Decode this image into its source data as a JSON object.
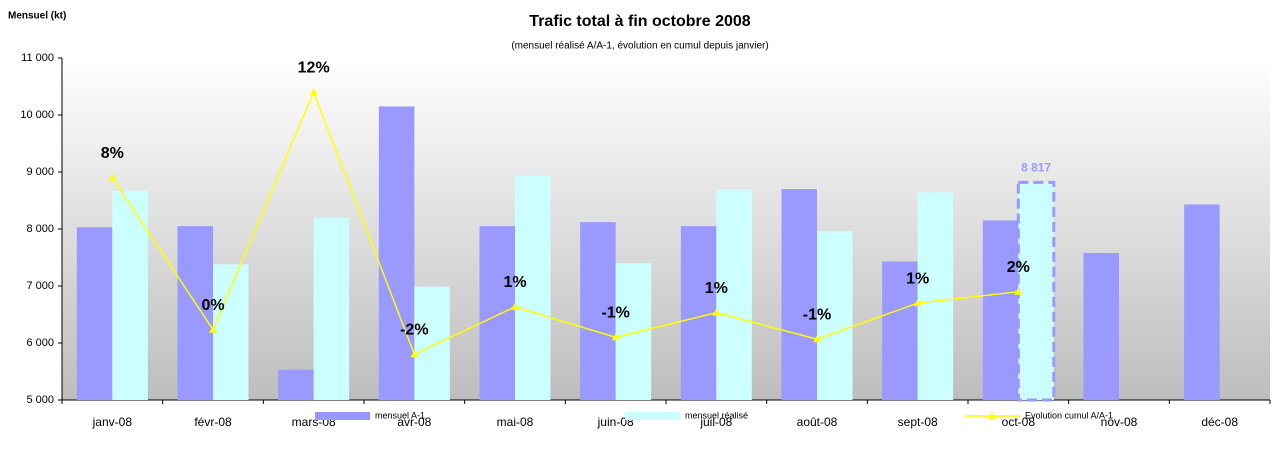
{
  "chart_data": {
    "type": "bar",
    "title": "Trafic total à fin octobre 2008",
    "subtitle": "(mensuel réalisé A/A-1, évolution en cumul depuis janvier)",
    "y_label": "Mensuel (kt)",
    "categories": [
      "janv-08",
      "févr-08",
      "mars-08",
      "avr-08",
      "mai-08",
      "juin-08",
      "juil-08",
      "août-08",
      "sept-08",
      "oct-08",
      "nov-08",
      "déc-08"
    ],
    "series": [
      {
        "name": "mensuel A-1",
        "type": "bar",
        "color": "#9999ff",
        "values": [
          8030,
          8050,
          5530,
          10150,
          8050,
          8120,
          8050,
          8700,
          7430,
          8150,
          7580,
          8430
        ]
      },
      {
        "name": "mensuel réalisé",
        "type": "bar",
        "color": "#ccffff",
        "values": [
          8670,
          7380,
          8200,
          6990,
          8940,
          7400,
          8690,
          7960,
          8640,
          8817,
          null,
          null
        ],
        "value_labels": [
          null,
          null,
          null,
          null,
          null,
          null,
          null,
          null,
          null,
          "8 817",
          null,
          null
        ]
      },
      {
        "name": "Evolution cumul A/A-1",
        "type": "line",
        "axis": "y2",
        "color": "#ffff00",
        "values": [
          7.7,
          -0.3,
          12.2,
          -1.6,
          0.9,
          -0.7,
          0.6,
          -0.8,
          1.1,
          1.7,
          null,
          null
        ],
        "value_labels": [
          "8%",
          "0%",
          "12%",
          "-2%",
          "1%",
          "-1%",
          "1%",
          "-1%",
          "1%",
          "2%",
          null,
          null
        ]
      }
    ],
    "ylim": [
      5000,
      11000
    ],
    "yticks": [
      {
        "value": 5000,
        "label": "5 000"
      },
      {
        "value": 6000,
        "label": "6 000"
      },
      {
        "value": 7000,
        "label": "7 000"
      },
      {
        "value": 8000,
        "label": "8 000"
      },
      {
        "value": 9000,
        "label": "9 000"
      },
      {
        "value": 10000,
        "label": "10 000"
      },
      {
        "value": 11000,
        "label": "11 000"
      }
    ],
    "y2lim": [
      -4,
      14
    ],
    "legend": "bottom"
  }
}
